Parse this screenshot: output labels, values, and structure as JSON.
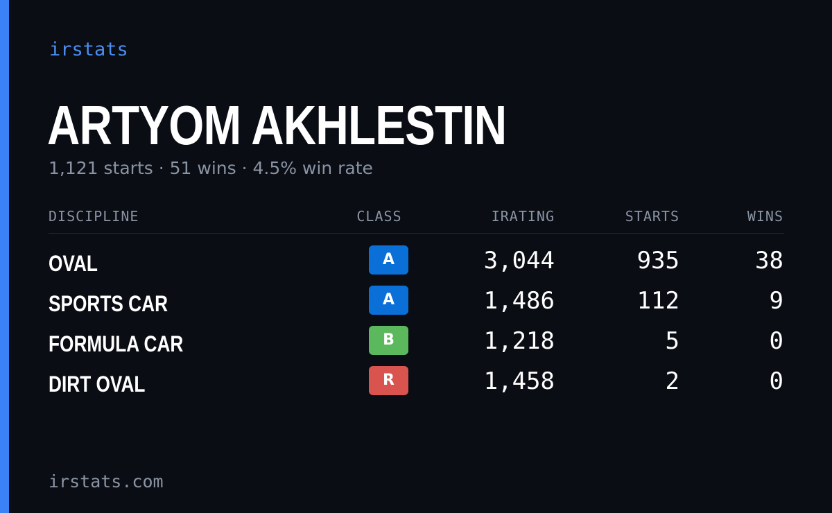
{
  "brand": "irstats",
  "driver": {
    "name": "ARTYOM AKHLESTIN",
    "summary": "1,121 starts · 51 wins · 4.5% win rate"
  },
  "table": {
    "headers": {
      "discipline": "DISCIPLINE",
      "class": "CLASS",
      "irating": "IRATING",
      "starts": "STARTS",
      "wins": "WINS"
    },
    "rows": [
      {
        "discipline": "OVAL",
        "class": "A",
        "class_color": "#0b6fd8",
        "irating": "3,044",
        "starts": "935",
        "wins": "38"
      },
      {
        "discipline": "SPORTS CAR",
        "class": "A",
        "class_color": "#0b6fd8",
        "irating": "1,486",
        "starts": "112",
        "wins": "9"
      },
      {
        "discipline": "FORMULA CAR",
        "class": "B",
        "class_color": "#5cb85c",
        "irating": "1,218",
        "starts": "5",
        "wins": "0"
      },
      {
        "discipline": "DIRT OVAL",
        "class": "R",
        "class_color": "#d9534f",
        "irating": "1,458",
        "starts": "2",
        "wins": "0"
      }
    ]
  },
  "footer": "irstats.com",
  "colors": {
    "background": "#0a0d14",
    "accent": "#3b82f6",
    "brand_text": "#4a8ef0",
    "muted_text": "#8b94a3"
  }
}
